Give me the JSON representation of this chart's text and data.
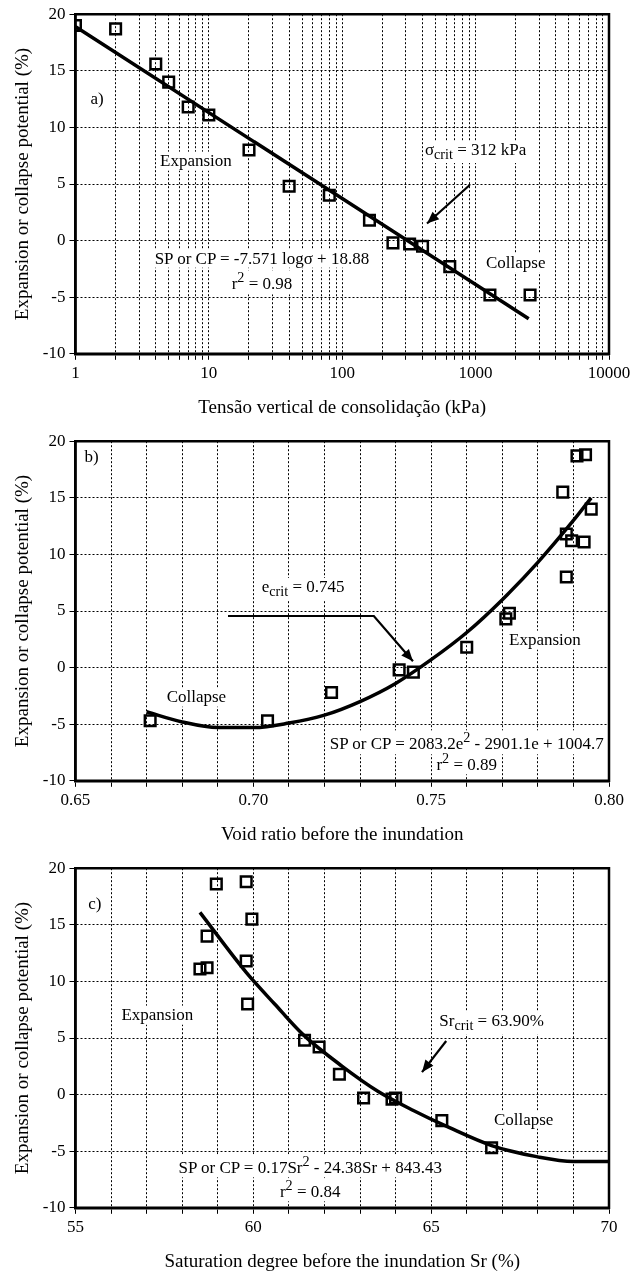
{
  "chart_data": [
    {
      "type": "scatter",
      "xlabel": "Tensão vertical de consolidação (kPa)",
      "ylabel": "Expansion or collapse potential (%)",
      "log": "x",
      "grid": true,
      "xlim": [
        1,
        10000
      ],
      "ylim": [
        -10,
        20
      ],
      "xticks": [
        1,
        {
          "value": 2,
          "label": null
        },
        {
          "value": 3,
          "label": null
        },
        {
          "value": 4,
          "label": null
        },
        {
          "value": 5,
          "label": null
        },
        {
          "value": 6,
          "label": null
        },
        {
          "value": 7,
          "label": null
        },
        {
          "value": 8,
          "label": null
        },
        {
          "value": 9,
          "label": null
        },
        10,
        {
          "value": 20,
          "label": null
        },
        {
          "value": 30,
          "label": null
        },
        {
          "value": 40,
          "label": null
        },
        {
          "value": 50,
          "label": null
        },
        {
          "value": 60,
          "label": null
        },
        {
          "value": 70,
          "label": null
        },
        {
          "value": 80,
          "label": null
        },
        {
          "value": 90,
          "label": null
        },
        100,
        {
          "value": 200,
          "label": null
        },
        {
          "value": 300,
          "label": null
        },
        {
          "value": 400,
          "label": null
        },
        {
          "value": 500,
          "label": null
        },
        {
          "value": 600,
          "label": null
        },
        {
          "value": 700,
          "label": null
        },
        {
          "value": 800,
          "label": null
        },
        {
          "value": 900,
          "label": null
        },
        1000,
        {
          "value": 2000,
          "label": null
        },
        {
          "value": 3000,
          "label": null
        },
        {
          "value": 4000,
          "label": null
        },
        {
          "value": 5000,
          "label": null
        },
        {
          "value": 6000,
          "label": null
        },
        {
          "value": 7000,
          "label": null
        },
        {
          "value": 8000,
          "label": null
        },
        {
          "value": 9000,
          "label": null
        },
        10000
      ],
      "yticks": [
        -10,
        -5,
        0,
        5,
        10,
        15,
        20
      ],
      "series": [
        {
          "type": "scatter",
          "marker": "square",
          "color": "#000000",
          "x": [
            1,
            2,
            4,
            5,
            7,
            10,
            20,
            40,
            80,
            160,
            240,
            320,
            400,
            640,
            1280,
            2560
          ],
          "values": [
            19,
            18.7,
            15.6,
            14,
            11.8,
            11.1,
            8,
            4.8,
            4,
            1.8,
            -0.2,
            -0.3,
            -0.5,
            -2.3,
            -4.8,
            -4.8
          ]
        },
        {
          "type": "line",
          "marker": "none",
          "color": "#000000",
          "x": [
            1,
            2500
          ],
          "values": [
            18.9,
            -6.9
          ]
        }
      ],
      "annotations": [
        "a)",
        "Expansion",
        "σ$_{crit}$ = 312 kPa",
        "SP or CP = -7.571 logσ + 18.88",
        "r$^{2}$ = 0.98",
        "Collapse"
      ]
    },
    {
      "type": "scatter",
      "xlabel": "Void ratio before the inundation",
      "ylabel": "Expansion or collapse potential (%)",
      "grid": true,
      "xlim": [
        0.65,
        0.8
      ],
      "ylim": [
        -10,
        20
      ],
      "xticks": [
        0.65,
        {
          "value": 0.66,
          "label": null
        },
        {
          "value": 0.67,
          "label": null
        },
        {
          "value": 0.68,
          "label": null
        },
        {
          "value": 0.69,
          "label": null
        },
        {
          "value": 0.7,
          "label": "0.70"
        },
        {
          "value": 0.71,
          "label": null
        },
        {
          "value": 0.72,
          "label": null
        },
        {
          "value": 0.73,
          "label": null
        },
        {
          "value": 0.74,
          "label": null
        },
        0.75,
        {
          "value": 0.76,
          "label": null
        },
        {
          "value": 0.77,
          "label": null
        },
        {
          "value": 0.78,
          "label": null
        },
        {
          "value": 0.79,
          "label": null
        },
        {
          "value": 0.8,
          "label": "0.80"
        }
      ],
      "yticks": [
        -10,
        -5,
        0,
        5,
        10,
        15,
        20
      ],
      "series": [
        {
          "type": "scatter",
          "marker": "square",
          "color": "#000000",
          "x": [
            0.671,
            0.704,
            0.722,
            0.741,
            0.745,
            0.76,
            0.771,
            0.772,
            0.787,
            0.788,
            0.788,
            0.7895,
            0.791,
            0.793,
            0.7934,
            0.795
          ],
          "values": [
            -4.7,
            -4.7,
            -2.2,
            -0.2,
            -0.4,
            1.8,
            4.3,
            4.8,
            15.5,
            11.8,
            8,
            11.2,
            18.7,
            11.1,
            18.8,
            14
          ]
        },
        {
          "type": "line",
          "marker": "none",
          "color": "#000000",
          "x": [
            0.67,
            0.68,
            0.69,
            0.7,
            0.71,
            0.72,
            0.73,
            0.74,
            0.75,
            0.76,
            0.77,
            0.78,
            0.79,
            0.795
          ],
          "values": [
            -3.9,
            -4.8,
            -5.3,
            -5.3,
            -4.9,
            -4.2,
            -3,
            -1.4,
            0.7,
            3.1,
            6,
            9.3,
            13,
            15
          ]
        }
      ],
      "annotations": [
        "b)",
        "e$_{crit}$ = 0.745",
        "Expansion",
        "Collapse",
        "SP or CP = 2083.2e$^{2}$ - 2901.1e + 1004.7",
        "r$^{2}$ = 0.89"
      ]
    },
    {
      "type": "scatter",
      "xlabel": "Saturation degree before the inundation Sr (%)",
      "ylabel": "Expansion or collapse potential (%)",
      "grid": true,
      "xlim": [
        55,
        70
      ],
      "ylim": [
        -10,
        20
      ],
      "xticks": [
        55,
        {
          "value": 56,
          "label": null
        },
        {
          "value": 57,
          "label": null
        },
        {
          "value": 58,
          "label": null
        },
        {
          "value": 59,
          "label": null
        },
        60,
        {
          "value": 61,
          "label": null
        },
        {
          "value": 62,
          "label": null
        },
        {
          "value": 63,
          "label": null
        },
        {
          "value": 64,
          "label": null
        },
        65,
        {
          "value": 66,
          "label": null
        },
        {
          "value": 67,
          "label": null
        },
        {
          "value": 68,
          "label": null
        },
        {
          "value": 69,
          "label": null
        },
        70
      ],
      "yticks": [
        -10,
        -5,
        0,
        5,
        10,
        15,
        20
      ],
      "series": [
        {
          "type": "scatter",
          "marker": "square",
          "color": "#000000",
          "x": [
            58.5,
            58.7,
            58.7,
            58.96,
            59.8,
            59.8,
            59.84,
            59.96,
            61.44,
            61.85,
            62.42,
            63.1,
            63.9,
            64,
            65.3,
            66.7
          ],
          "values": [
            11.1,
            11.2,
            14,
            18.6,
            18.8,
            11.8,
            8,
            15.5,
            4.8,
            4.2,
            1.8,
            -0.3,
            -0.4,
            -0.3,
            -2.3,
            -4.7
          ]
        },
        {
          "type": "line",
          "marker": "none",
          "color": "#000000",
          "x": [
            58.5,
            59.8,
            60.6,
            61.4,
            62.5,
            63.5,
            64.5,
            65.5,
            66.7,
            68,
            69,
            70
          ],
          "values": [
            16.1,
            10.8,
            8,
            5.3,
            2.5,
            0.3,
            -1.4,
            -2.9,
            -4.5,
            -5.5,
            -5.9,
            -5.9
          ]
        }
      ],
      "annotations": [
        "c)",
        "Expansion",
        "Sr$_{crit}$ = 63.90%",
        "Collapse",
        "SP or CP = 0.17Sr$^{2}$ - 24.38Sr + 843.43",
        "r$^{2}$ = 0.84"
      ]
    }
  ]
}
